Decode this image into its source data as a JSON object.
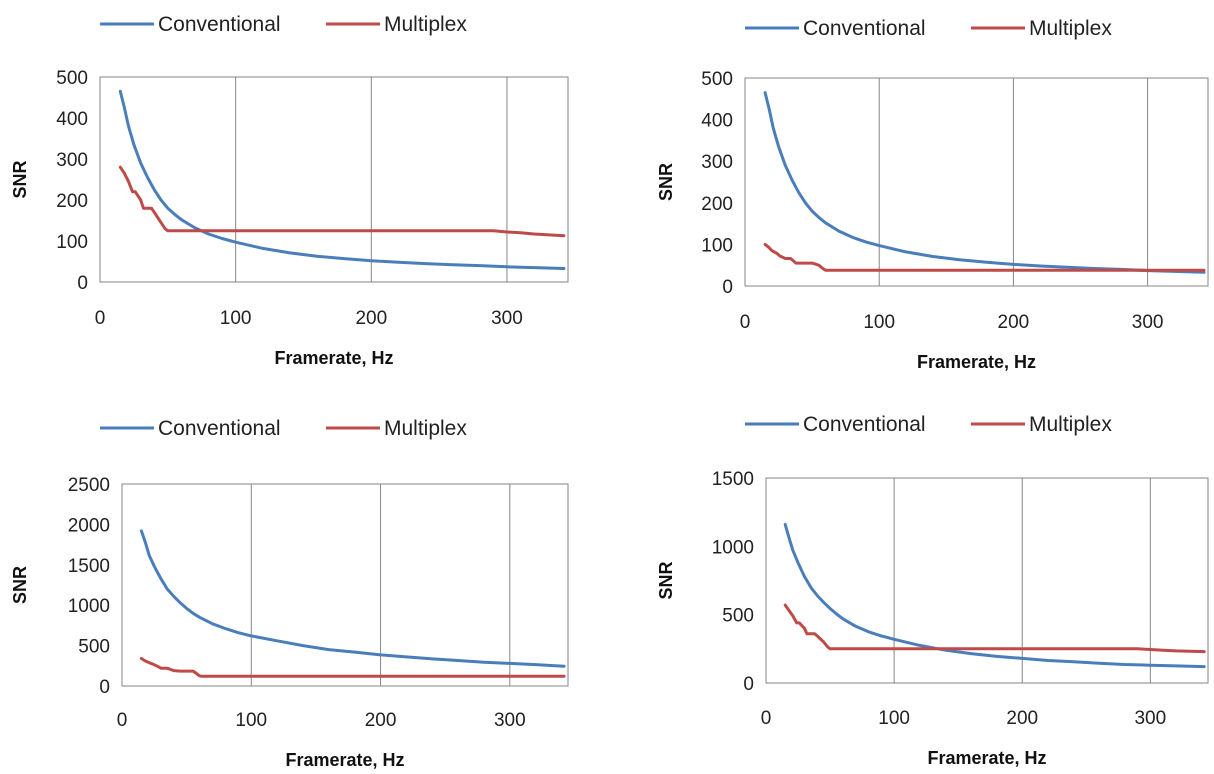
{
  "chart_data": [
    {
      "type": "line",
      "xlabel": "Framerate, Hz",
      "ylabel": "SNR",
      "xlim": [
        0,
        345
      ],
      "ylim": [
        0,
        500
      ],
      "xticks": [
        0,
        100,
        200,
        300
      ],
      "yticks": [
        0,
        100,
        200,
        300,
        400,
        500
      ],
      "grid": "vertical",
      "legend": "top",
      "colors": {
        "Conventional": "#4a7ebb",
        "Multiplex": "#be4b48"
      },
      "series": [
        {
          "name": "Conventional",
          "x": [
            15,
            18,
            21,
            25,
            30,
            35,
            40,
            45,
            50,
            55,
            60,
            70,
            80,
            90,
            100,
            120,
            140,
            160,
            180,
            200,
            220,
            240,
            260,
            280,
            300,
            320,
            342
          ],
          "y": [
            465,
            425,
            380,
            335,
            290,
            255,
            225,
            200,
            180,
            165,
            152,
            132,
            117,
            106,
            97,
            82,
            71,
            63,
            57,
            52,
            48,
            45,
            42,
            40,
            37,
            35,
            33
          ]
        },
        {
          "name": "Multiplex",
          "x": [
            15,
            18,
            21,
            24,
            26,
            30,
            32,
            34,
            38,
            40,
            45,
            48,
            50,
            52,
            55,
            100,
            150,
            200,
            250,
            290,
            300,
            310,
            320,
            342
          ],
          "y": [
            280,
            265,
            245,
            220,
            220,
            200,
            180,
            180,
            180,
            170,
            145,
            130,
            125,
            125,
            125,
            125,
            125,
            125,
            125,
            125,
            122,
            120,
            117,
            113
          ]
        }
      ]
    },
    {
      "type": "line",
      "xlabel": "Framerate, Hz",
      "ylabel": "SNR",
      "xlim": [
        0,
        345
      ],
      "ylim": [
        0,
        500
      ],
      "xticks": [
        0,
        100,
        200,
        300
      ],
      "yticks": [
        0,
        100,
        200,
        300,
        400,
        500
      ],
      "grid": "vertical",
      "legend": "top",
      "colors": {
        "Conventional": "#4a7ebb",
        "Multiplex": "#be4b48"
      },
      "series": [
        {
          "name": "Conventional",
          "x": [
            15,
            18,
            21,
            25,
            30,
            35,
            40,
            45,
            50,
            55,
            60,
            70,
            80,
            90,
            100,
            120,
            140,
            160,
            180,
            200,
            220,
            240,
            260,
            280,
            300,
            320,
            342
          ],
          "y": [
            465,
            425,
            380,
            335,
            290,
            255,
            225,
            200,
            180,
            165,
            152,
            132,
            117,
            106,
            97,
            82,
            71,
            63,
            57,
            52,
            48,
            45,
            42,
            40,
            37,
            35,
            33
          ]
        },
        {
          "name": "Multiplex",
          "x": [
            15,
            18,
            20,
            24,
            26,
            30,
            34,
            38,
            40,
            45,
            50,
            55,
            58,
            60,
            62,
            100,
            200,
            300,
            342
          ],
          "y": [
            100,
            92,
            85,
            78,
            72,
            66,
            66,
            55,
            55,
            55,
            55,
            50,
            42,
            38,
            38,
            38,
            38,
            38,
            38
          ]
        }
      ]
    },
    {
      "type": "line",
      "xlabel": "Framerate, Hz",
      "ylabel": "SNR",
      "xlim": [
        0,
        345
      ],
      "ylim": [
        0,
        2500
      ],
      "xticks": [
        0,
        100,
        200,
        300
      ],
      "yticks": [
        0,
        500,
        1000,
        1500,
        2000,
        2500
      ],
      "grid": "vertical",
      "legend": "top",
      "colors": {
        "Conventional": "#4a7ebb",
        "Multiplex": "#be4b48"
      },
      "series": [
        {
          "name": "Conventional",
          "x": [
            15,
            18,
            21,
            25,
            30,
            35,
            40,
            45,
            50,
            55,
            60,
            70,
            80,
            90,
            100,
            120,
            140,
            160,
            180,
            200,
            220,
            240,
            260,
            280,
            300,
            320,
            342
          ],
          "y": [
            1920,
            1780,
            1620,
            1480,
            1330,
            1200,
            1110,
            1030,
            960,
            900,
            850,
            770,
            710,
            660,
            620,
            560,
            500,
            450,
            420,
            385,
            360,
            335,
            315,
            295,
            280,
            265,
            245
          ]
        },
        {
          "name": "Multiplex",
          "x": [
            15,
            18,
            21,
            24,
            28,
            30,
            35,
            40,
            45,
            50,
            55,
            58,
            60,
            62,
            100,
            200,
            300,
            342
          ],
          "y": [
            340,
            310,
            290,
            270,
            240,
            220,
            220,
            190,
            185,
            185,
            185,
            150,
            125,
            120,
            120,
            120,
            120,
            120
          ]
        }
      ]
    },
    {
      "type": "line",
      "xlabel": "Framerate, Hz",
      "ylabel": "SNR",
      "xlim": [
        0,
        345
      ],
      "ylim": [
        0,
        1500
      ],
      "xticks": [
        0,
        100,
        200,
        300
      ],
      "yticks": [
        0,
        500,
        1000,
        1500
      ],
      "grid": "vertical",
      "legend": "top",
      "colors": {
        "Conventional": "#4a7ebb",
        "Multiplex": "#be4b48"
      },
      "series": [
        {
          "name": "Conventional",
          "x": [
            15,
            18,
            21,
            25,
            30,
            35,
            40,
            45,
            50,
            55,
            60,
            70,
            80,
            90,
            100,
            120,
            140,
            160,
            180,
            200,
            220,
            240,
            260,
            280,
            300,
            320,
            342
          ],
          "y": [
            1160,
            1060,
            970,
            880,
            780,
            700,
            640,
            590,
            545,
            505,
            470,
            415,
            375,
            345,
            320,
            275,
            240,
            215,
            195,
            180,
            165,
            155,
            145,
            135,
            130,
            125,
            120
          ]
        },
        {
          "name": "Multiplex",
          "x": [
            15,
            18,
            21,
            24,
            26,
            30,
            32,
            34,
            38,
            40,
            45,
            48,
            50,
            52,
            55,
            100,
            150,
            200,
            250,
            290,
            300,
            310,
            320,
            342
          ],
          "y": [
            570,
            530,
            490,
            440,
            440,
            400,
            360,
            360,
            360,
            345,
            300,
            265,
            250,
            250,
            250,
            250,
            250,
            250,
            250,
            250,
            245,
            240,
            235,
            230
          ]
        }
      ]
    }
  ]
}
